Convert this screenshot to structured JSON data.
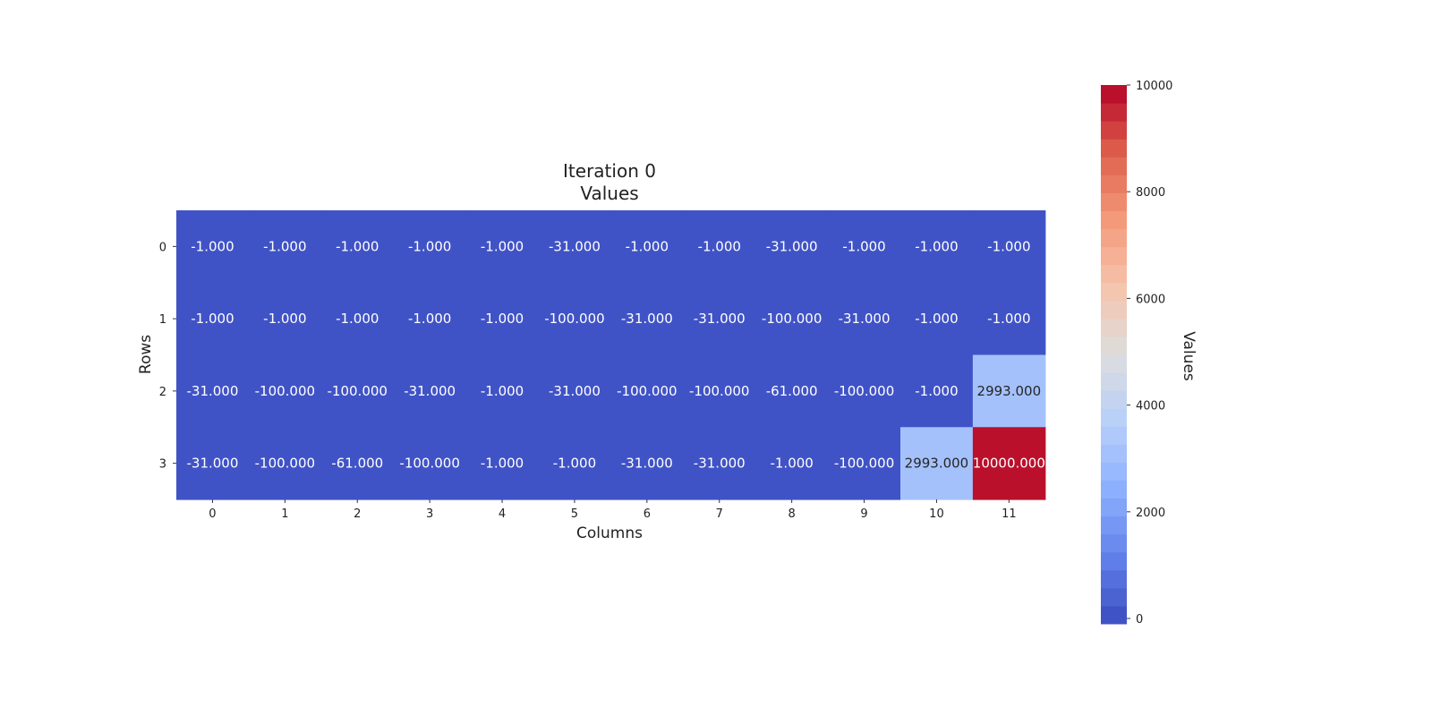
{
  "chart_data": {
    "type": "heatmap",
    "title": [
      "Iteration 0",
      "Values"
    ],
    "xlabel": "Columns",
    "ylabel": "Rows",
    "x_ticks": [
      "0",
      "1",
      "2",
      "3",
      "4",
      "5",
      "6",
      "7",
      "8",
      "9",
      "10",
      "11"
    ],
    "y_ticks": [
      "0",
      "1",
      "2",
      "3"
    ],
    "values": [
      [
        -1,
        -1,
        -1,
        -1,
        -1,
        -31,
        -1,
        -1,
        -31,
        -1,
        -1,
        -1
      ],
      [
        -1,
        -1,
        -1,
        -1,
        -1,
        -100,
        -31,
        -31,
        -100,
        -31,
        -1,
        -1
      ],
      [
        -31,
        -100,
        -100,
        -31,
        -1,
        -31,
        -100,
        -100,
        -61,
        -100,
        -1,
        2993
      ],
      [
        -31,
        -100,
        -61,
        -100,
        -1,
        -1,
        -31,
        -31,
        -1,
        -100,
        2993,
        10000
      ]
    ],
    "value_labels": [
      [
        "-1.000",
        "-1.000",
        "-1.000",
        "-1.000",
        "-1.000",
        "-31.000",
        "-1.000",
        "-1.000",
        "-31.000",
        "-1.000",
        "-1.000",
        "-1.000"
      ],
      [
        "-1.000",
        "-1.000",
        "-1.000",
        "-1.000",
        "-1.000",
        "-100.000",
        "-31.000",
        "-31.000",
        "-100.000",
        "-31.000",
        "-1.000",
        "-1.000"
      ],
      [
        "-31.000",
        "-100.000",
        "-100.000",
        "-31.000",
        "-1.000",
        "-31.000",
        "-100.000",
        "-100.000",
        "-61.000",
        "-100.000",
        "-1.000",
        "2993.000"
      ],
      [
        "-31.000",
        "-100.000",
        "-61.000",
        "-100.000",
        "-1.000",
        "-1.000",
        "-31.000",
        "-31.000",
        "-1.000",
        "-100.000",
        "2993.000",
        "10000.000"
      ]
    ],
    "colormap": "coolwarm",
    "colorbar": {
      "label": "Values",
      "range": [
        -100,
        10000
      ],
      "ticks": [
        0,
        2000,
        4000,
        6000,
        8000,
        10000
      ],
      "tick_labels": [
        "0",
        "2000",
        "4000",
        "6000",
        "8000",
        "10000"
      ],
      "levels": 30
    }
  }
}
